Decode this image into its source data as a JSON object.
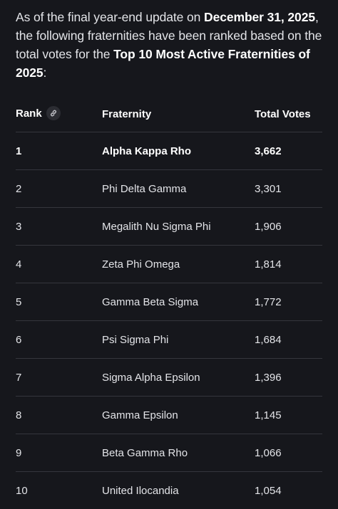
{
  "intro": {
    "part1": "As of the final year-end update on ",
    "date": "December 31, 2025",
    "part2": ", the following fraternities have been ranked based on the total votes for the ",
    "list_title": "Top 10 Most Active Fraternities of 2025",
    "part3": ":"
  },
  "table": {
    "headers": {
      "rank": "Rank",
      "fraternity": "Fraternity",
      "votes": "Total Votes"
    },
    "rows": [
      {
        "rank": "1",
        "fraternity": "Alpha Kappa Rho",
        "votes": "3,662"
      },
      {
        "rank": "2",
        "fraternity": "Phi Delta Gamma",
        "votes": "3,301"
      },
      {
        "rank": "3",
        "fraternity": "Megalith Nu Sigma Phi",
        "votes": "1,906"
      },
      {
        "rank": "4",
        "fraternity": "Zeta Phi Omega",
        "votes": "1,814"
      },
      {
        "rank": "5",
        "fraternity": "Gamma Beta Sigma",
        "votes": "1,772"
      },
      {
        "rank": "6",
        "fraternity": "Psi Sigma Phi",
        "votes": "1,684"
      },
      {
        "rank": "7",
        "fraternity": "Sigma Alpha Epsilon",
        "votes": "1,396"
      },
      {
        "rank": "8",
        "fraternity": "Gamma Epsilon",
        "votes": "1,145"
      },
      {
        "rank": "9",
        "fraternity": "Beta Gamma Rho",
        "votes": "1,066"
      },
      {
        "rank": "10",
        "fraternity": "United Ilocandia",
        "votes": "1,054"
      }
    ]
  },
  "icons": {
    "header_link": "link-icon"
  },
  "colors": {
    "background": "#16171c",
    "text": "#e3e4e8",
    "divider": "#35363d"
  }
}
